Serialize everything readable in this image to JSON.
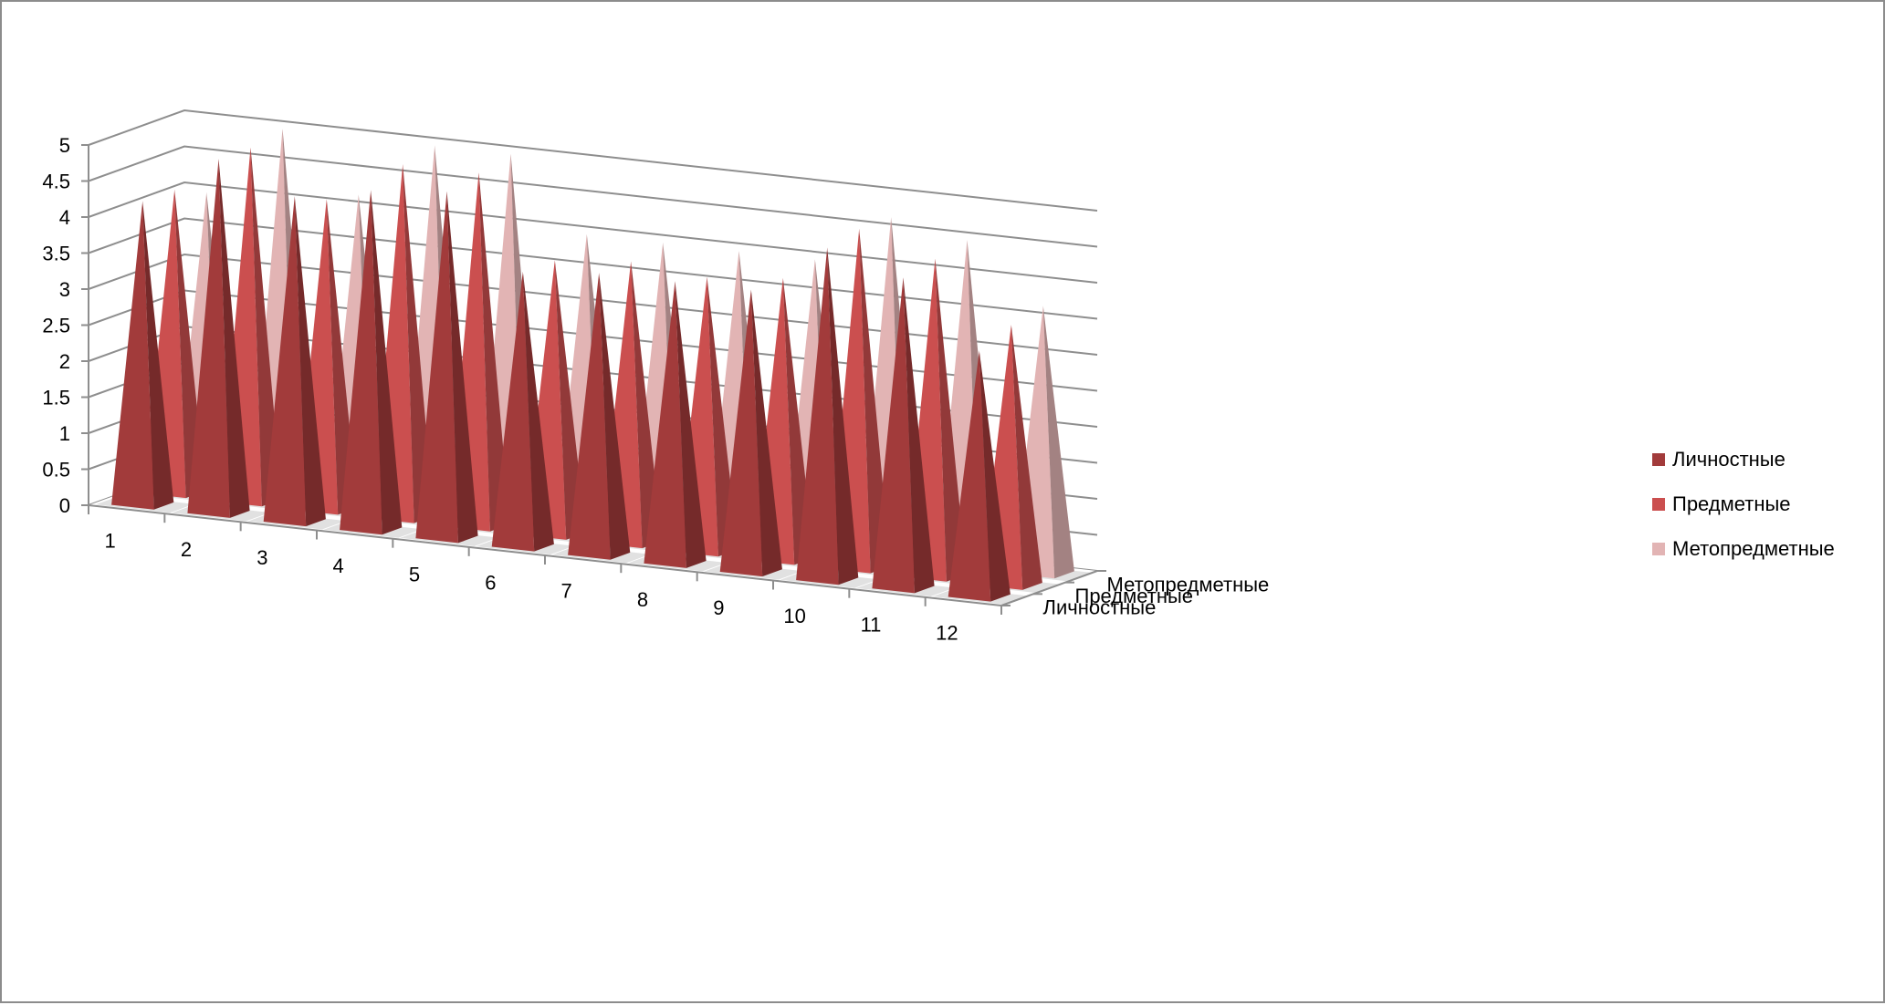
{
  "chart_data": {
    "type": "bar",
    "variant": "3d-pyramid-column",
    "title": "",
    "xlabel": "",
    "ylabel": "",
    "categories": [
      "1",
      "2",
      "3",
      "4",
      "5",
      "6",
      "7",
      "8",
      "9",
      "10",
      "11",
      "12"
    ],
    "series": [
      {
        "name": "Личностные",
        "color": "#a23b3b",
        "values": [
          4.2,
          4.9,
          4.5,
          4.7,
          4.8,
          3.8,
          3.9,
          3.9,
          3.9,
          4.6,
          4.3,
          3.4
        ]
      },
      {
        "name": "Предметные",
        "color": "#cb4f4f",
        "values": [
          4.2,
          4.9,
          4.3,
          4.9,
          4.9,
          3.8,
          3.9,
          3.8,
          3.9,
          4.7,
          4.4,
          3.6
        ]
      },
      {
        "name": "Метопредметные",
        "color": "#e2b4b4",
        "values": [
          4.0,
          5.0,
          4.2,
          5.0,
          5.0,
          4.0,
          4.0,
          4.0,
          4.0,
          4.7,
          4.5,
          3.7
        ]
      }
    ],
    "depth_labels": [
      "Метопредметные",
      "Предметные",
      "Личностные"
    ],
    "yticks": [
      "0",
      "0.5",
      "1",
      "1.5",
      "2",
      "2.5",
      "3",
      "3.5",
      "4",
      "4.5",
      "5"
    ],
    "ylim": [
      0,
      5
    ],
    "grid": true,
    "legend": "right"
  }
}
